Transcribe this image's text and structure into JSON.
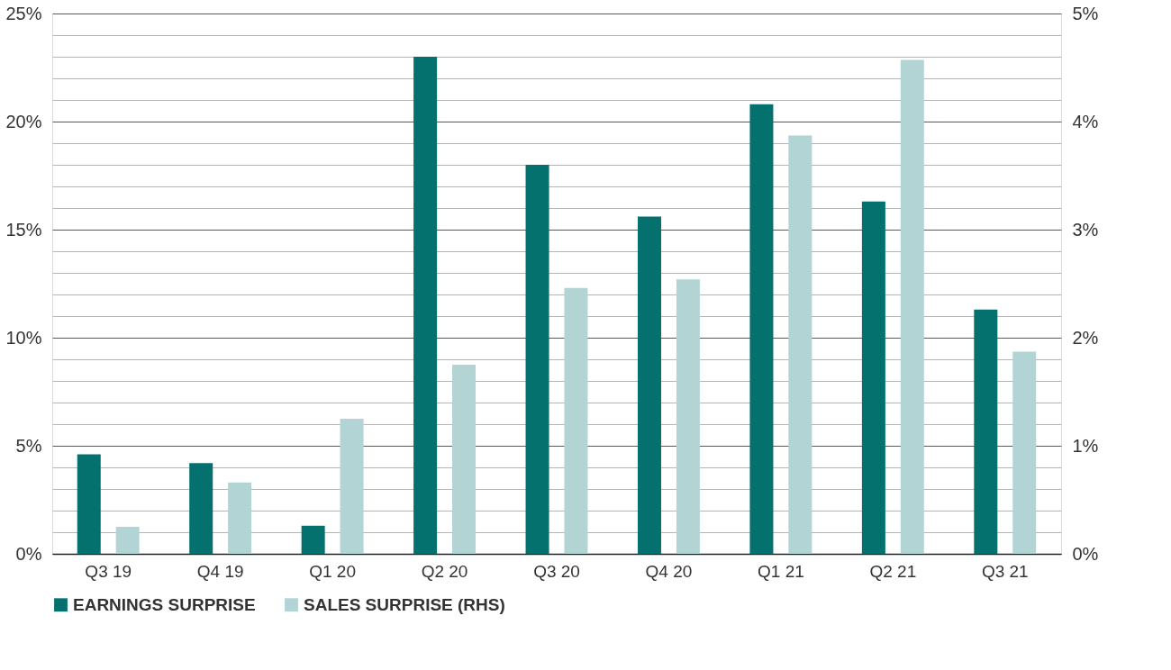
{
  "chart_data": {
    "type": "bar",
    "categories": [
      "Q3 19",
      "Q4 19",
      "Q1 20",
      "Q2 20",
      "Q3 20",
      "Q4 20",
      "Q1 21",
      "Q2 21",
      "Q3 21"
    ],
    "series": [
      {
        "name": "EARNINGS SURPRISE",
        "color": "#04716f",
        "values": [
          4.6,
          4.2,
          1.3,
          23.0,
          18.0,
          15.6,
          20.8,
          16.3,
          11.3
        ]
      },
      {
        "name": "SALES SURPRISE (RHS)",
        "color": "#b2d4d4",
        "axis": "y2",
        "values": [
          0.25,
          0.66,
          1.25,
          1.75,
          2.46,
          2.54,
          3.87,
          4.57,
          1.87
        ]
      }
    ],
    "ylim": [
      0,
      25
    ],
    "yticks": [
      {
        "value": 0,
        "label": "0%"
      },
      {
        "value": 1,
        "label": null
      },
      {
        "value": 2,
        "label": null
      },
      {
        "value": 3,
        "label": null
      },
      {
        "value": 4,
        "label": null
      },
      {
        "value": 5,
        "label": "5%"
      },
      {
        "value": 6,
        "label": null
      },
      {
        "value": 7,
        "label": null
      },
      {
        "value": 8,
        "label": null
      },
      {
        "value": 9,
        "label": null
      },
      {
        "value": 10,
        "label": "10%"
      },
      {
        "value": 11,
        "label": null
      },
      {
        "value": 12,
        "label": null
      },
      {
        "value": 13,
        "label": null
      },
      {
        "value": 14,
        "label": null
      },
      {
        "value": 15,
        "label": "15%"
      },
      {
        "value": 16,
        "label": null
      },
      {
        "value": 17,
        "label": null
      },
      {
        "value": 18,
        "label": null
      },
      {
        "value": 19,
        "label": null
      },
      {
        "value": 20,
        "label": "20%"
      },
      {
        "value": 21,
        "label": null
      },
      {
        "value": 22,
        "label": null
      },
      {
        "value": 23,
        "label": null
      },
      {
        "value": 24,
        "label": null
      },
      {
        "value": 25,
        "label": "25%"
      }
    ],
    "y2lim": [
      0,
      5
    ],
    "y2ticks": [
      {
        "value": 0,
        "label": "0%"
      },
      {
        "value": 1,
        "label": "1%"
      },
      {
        "value": 2,
        "label": "2%"
      },
      {
        "value": 3,
        "label": "3%"
      },
      {
        "value": 4,
        "label": "4%"
      },
      {
        "value": 5,
        "label": "5%"
      }
    ],
    "grid": "y",
    "legend": "bottom"
  }
}
